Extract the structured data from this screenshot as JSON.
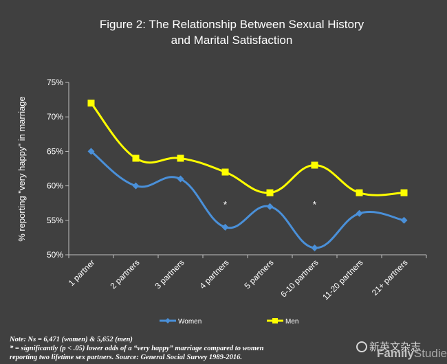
{
  "chart_data": {
    "type": "line",
    "title_line1": "Figure  2: The Relationship Between Sexual History",
    "title_line2": "and Marital Satisfaction",
    "ylabel": "% reporting \"very happy\" in marriage",
    "xlabel": "",
    "categories": [
      "1 partner",
      "2 partners",
      "3 partners",
      "4 partners",
      "5 partners",
      "6-10 partners",
      "11-20 partners",
      "21+ partners"
    ],
    "ylim": [
      50,
      75
    ],
    "yticks": [
      "50%",
      "55%",
      "60%",
      "65%",
      "70%",
      "75%"
    ],
    "series": [
      {
        "name": "Women",
        "values": [
          65,
          60,
          61,
          54,
          57,
          51,
          56,
          55
        ],
        "color": "#4a90d9",
        "marker": "diamond"
      },
      {
        "name": "Men",
        "values": [
          72,
          64,
          64,
          62,
          59,
          63,
          59,
          59
        ],
        "color": "#ffff00",
        "marker": "square"
      }
    ],
    "annotations": [
      {
        "category": "4 partners",
        "value": 56.8,
        "text": "*"
      },
      {
        "category": "6-10 partners",
        "value": 56.8,
        "text": "*"
      }
    ],
    "legend_position": "bottom",
    "grid": false
  },
  "note_line1": "Note: Ns = 6,471 (women) & 5,652 (men)",
  "note_line2": "* = significantly (p < .05) lower odds of a “very happy” marriage compared to women",
  "note_line3": "reporting two lifetime sex partners.  Source: General Social Survey 1989-2016.",
  "watermark_text": "新英文杂志",
  "brand_bold": "Family",
  "brand_light": "Studies"
}
